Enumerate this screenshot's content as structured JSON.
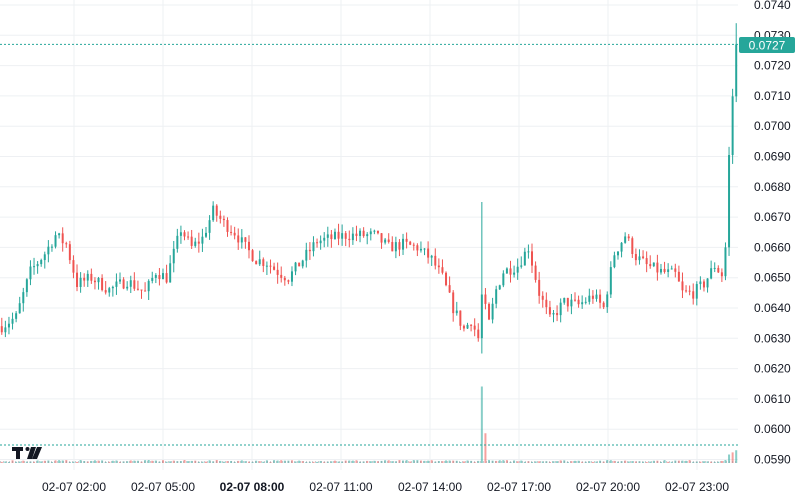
{
  "chart_data": {
    "type": "candlestick",
    "price_axis": {
      "ticks": [
        "0.0740",
        "0.0730",
        "0.0720",
        "0.0710",
        "0.0700",
        "0.0690",
        "0.0680",
        "0.0670",
        "0.0660",
        "0.0650",
        "0.0640",
        "0.0630",
        "0.0620",
        "0.0610",
        "0.0600",
        "0.0590"
      ],
      "range": [
        0.0588,
        0.0742
      ]
    },
    "time_axis": {
      "ticks": [
        {
          "label": "02-07 02:00",
          "bold": false
        },
        {
          "label": "02-07 05:00",
          "bold": false
        },
        {
          "label": "02-07 08:00",
          "bold": true
        },
        {
          "label": "02-07 11:00",
          "bold": false
        },
        {
          "label": "02-07 14:00",
          "bold": false
        },
        {
          "label": "02-07 17:00",
          "bold": false
        },
        {
          "label": "02-07 20:00",
          "bold": false
        },
        {
          "label": "02-07 23:00",
          "bold": false
        }
      ],
      "range": [
        "02-07 00:55",
        "02-08 00:20"
      ]
    },
    "last_price": {
      "label": "0.0727",
      "value": 0.0727
    },
    "grid": true,
    "colors": {
      "up": "#26a69a",
      "down": "#ef5350",
      "grid": "#eef0f3",
      "text": "#131722",
      "price_line": "#26a69a"
    },
    "logo_icon": "tradingview-logo",
    "keypoints": [
      [
        0,
        0.0634
      ],
      [
        4,
        0.0637
      ],
      [
        8,
        0.0652
      ],
      [
        12,
        0.0658
      ],
      [
        15,
        0.0664
      ],
      [
        18,
        0.0661
      ],
      [
        21,
        0.0648
      ],
      [
        25,
        0.065
      ],
      [
        30,
        0.0646
      ],
      [
        35,
        0.0649
      ],
      [
        40,
        0.0645
      ],
      [
        43,
        0.0652
      ],
      [
        46,
        0.065
      ],
      [
        50,
        0.0666
      ],
      [
        53,
        0.066
      ],
      [
        56,
        0.0663
      ],
      [
        59,
        0.0672
      ],
      [
        62,
        0.0668
      ],
      [
        65,
        0.0665
      ],
      [
        68,
        0.066
      ],
      [
        71,
        0.0656
      ],
      [
        74,
        0.0655
      ],
      [
        77,
        0.0652
      ],
      [
        80,
        0.065
      ],
      [
        84,
        0.0656
      ],
      [
        88,
        0.0662
      ],
      [
        92,
        0.0663
      ],
      [
        96,
        0.0664
      ],
      [
        100,
        0.0664
      ],
      [
        104,
        0.0664
      ],
      [
        108,
        0.066
      ],
      [
        112,
        0.0661
      ],
      [
        116,
        0.066
      ],
      [
        120,
        0.0656
      ],
      [
        123,
        0.065
      ],
      [
        126,
        0.064
      ],
      [
        129,
        0.0633
      ],
      [
        131,
        0.0636
      ],
      [
        133,
        0.063
      ],
      [
        134,
        0.0644
      ],
      [
        136,
        0.0635
      ],
      [
        138,
        0.0646
      ],
      [
        140,
        0.0652
      ],
      [
        144,
        0.0654
      ],
      [
        147,
        0.066
      ],
      [
        150,
        0.0645
      ],
      [
        153,
        0.0636
      ],
      [
        157,
        0.0642
      ],
      [
        161,
        0.0641
      ],
      [
        165,
        0.0644
      ],
      [
        168,
        0.064
      ],
      [
        171,
        0.0658
      ],
      [
        174,
        0.0664
      ],
      [
        177,
        0.0657
      ],
      [
        180,
        0.0654
      ],
      [
        184,
        0.0652
      ],
      [
        188,
        0.0651
      ],
      [
        190,
        0.0645
      ],
      [
        193,
        0.0645
      ],
      [
        196,
        0.0648
      ],
      [
        199,
        0.0654
      ],
      [
        201,
        0.0651
      ],
      [
        202,
        0.066
      ],
      [
        203,
        0.069
      ],
      [
        204,
        0.071
      ],
      [
        205,
        0.0727
      ]
    ],
    "volume_spikes": [
      [
        134,
        0.9
      ],
      [
        135,
        0.35
      ]
    ],
    "volume_tail": [
      [
        203,
        0.2
      ],
      [
        204,
        0.25
      ],
      [
        205,
        0.3
      ]
    ]
  }
}
